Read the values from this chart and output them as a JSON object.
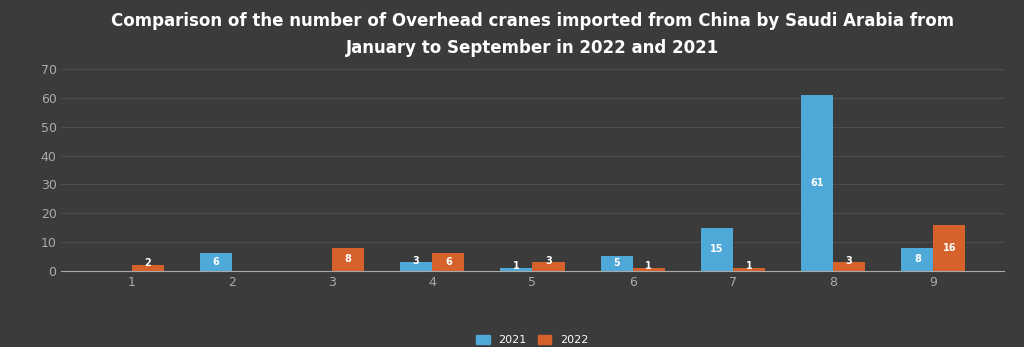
{
  "title": "Comparison of the number of Overhead cranes imported from China by Saudi Arabia from\nJanuary to September in 2022 and 2021",
  "months": [
    1,
    2,
    3,
    4,
    5,
    6,
    7,
    8,
    9
  ],
  "values_2021": [
    0,
    6,
    0,
    3,
    1,
    5,
    15,
    61,
    8
  ],
  "values_2022": [
    2,
    0,
    8,
    6,
    3,
    1,
    1,
    3,
    16
  ],
  "labels_2021": [
    "",
    "6",
    "",
    "3",
    "1",
    "5",
    "15",
    "61",
    "8"
  ],
  "labels_2022": [
    "2",
    "",
    "8",
    "6",
    "3",
    "1",
    "1",
    "3",
    "16"
  ],
  "color_2021": "#4ea8d8",
  "color_2022": "#d4622a",
  "background_color": "#3b3b3b",
  "grid_color": "#4e4e4e",
  "text_color": "#ffffff",
  "tick_color": "#aaaaaa",
  "ylim": [
    0,
    70
  ],
  "yticks": [
    0,
    10,
    20,
    30,
    40,
    50,
    60,
    70
  ],
  "legend_2021": "2021",
  "legend_2022": "2022",
  "bar_width": 0.32,
  "title_fontsize": 12,
  "tick_fontsize": 9,
  "label_fontsize": 7
}
